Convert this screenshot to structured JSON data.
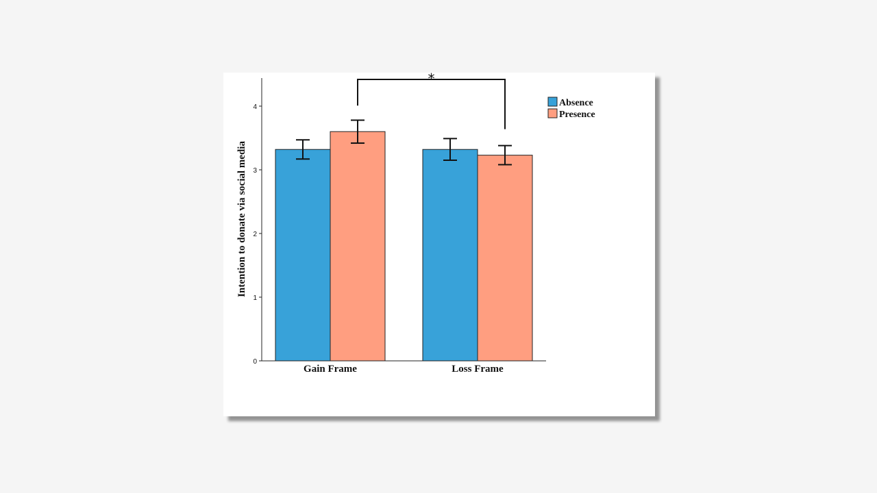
{
  "chart_data": {
    "type": "bar",
    "categories": [
      "Gain Frame",
      "Loss Frame"
    ],
    "series": [
      {
        "name": "Absence",
        "values": [
          3.32,
          3.32
        ],
        "error": [
          0.15,
          0.17
        ],
        "color": "#38a2d9"
      },
      {
        "name": "Presence",
        "values": [
          3.6,
          3.23
        ],
        "error": [
          0.18,
          0.15
        ],
        "color": "#ff9e80"
      }
    ],
    "xlabel": "",
    "ylabel": "Intention to donate via social media",
    "ylim": [
      0,
      4.4
    ],
    "yticks": [
      0,
      1,
      2,
      3,
      4
    ],
    "grid": false,
    "legend_position": "top-right",
    "significance": {
      "symbol": "*",
      "from": {
        "category": 0,
        "series": 1
      },
      "to": {
        "category": 1,
        "series": 1
      }
    }
  }
}
